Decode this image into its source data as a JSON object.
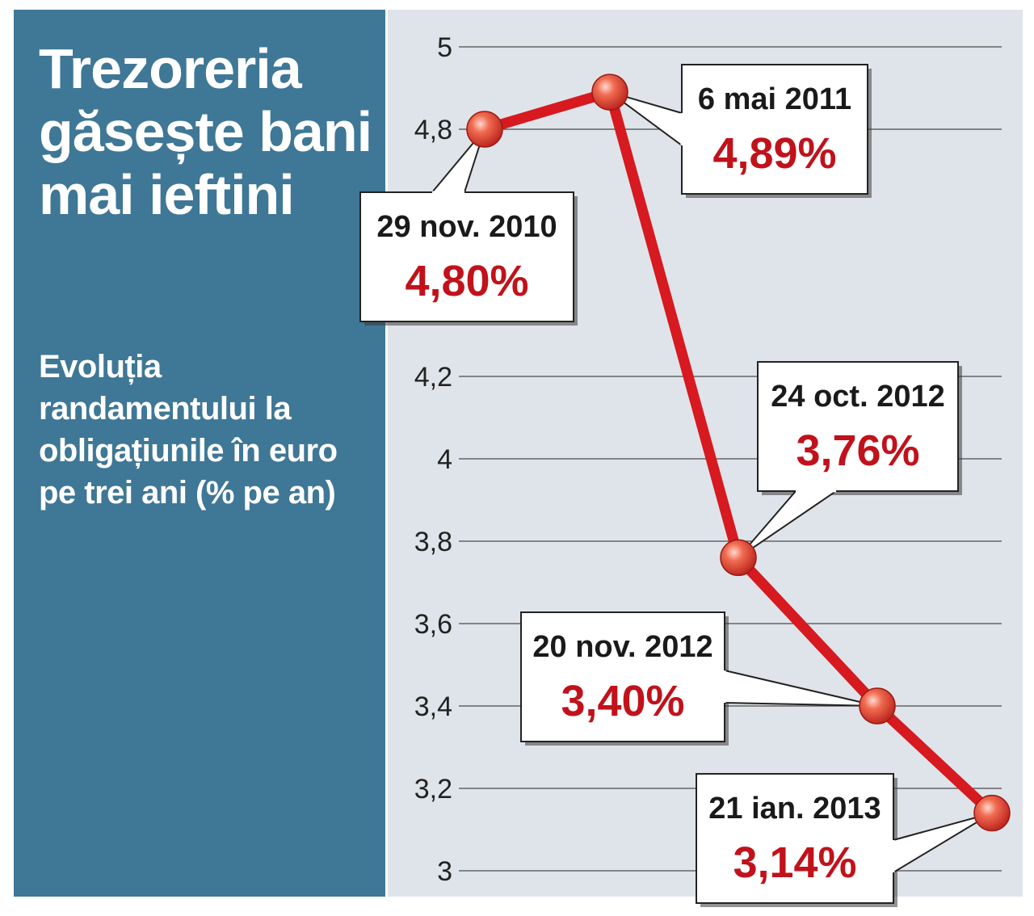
{
  "panel": {
    "title": "Trezoreria găsește bani mai ieftini",
    "subtitle": "Evoluția randamentului la obligațiunile în euro pe trei ani (% pe an)"
  },
  "colors": {
    "panel_bg": "#3f7796",
    "plot_bg": "#dfe4ea",
    "line": "#d71920",
    "value_text": "#c1121b"
  },
  "chart_data": {
    "type": "line",
    "title": "",
    "xlabel": "",
    "ylabel": "",
    "ylim": [
      3,
      5
    ],
    "grid": true,
    "y_ticks": [
      "3",
      "3,2",
      "3,4",
      "3,6",
      "3,8",
      "4",
      "4,2",
      "4,8",
      "5"
    ],
    "series": [
      {
        "points": [
          {
            "date": "29 nov. 2010",
            "value": 4.8,
            "label": "4,80%"
          },
          {
            "date": "6 mai 2011",
            "value": 4.89,
            "label": "4,89%"
          },
          {
            "date": "24 oct. 2012",
            "value": 3.76,
            "label": "3,76%"
          },
          {
            "date": "20 nov. 2012",
            "value": 3.4,
            "label": "3,40%"
          },
          {
            "date": "21 ian. 2013",
            "value": 3.14,
            "label": "3,14%"
          }
        ]
      }
    ]
  }
}
